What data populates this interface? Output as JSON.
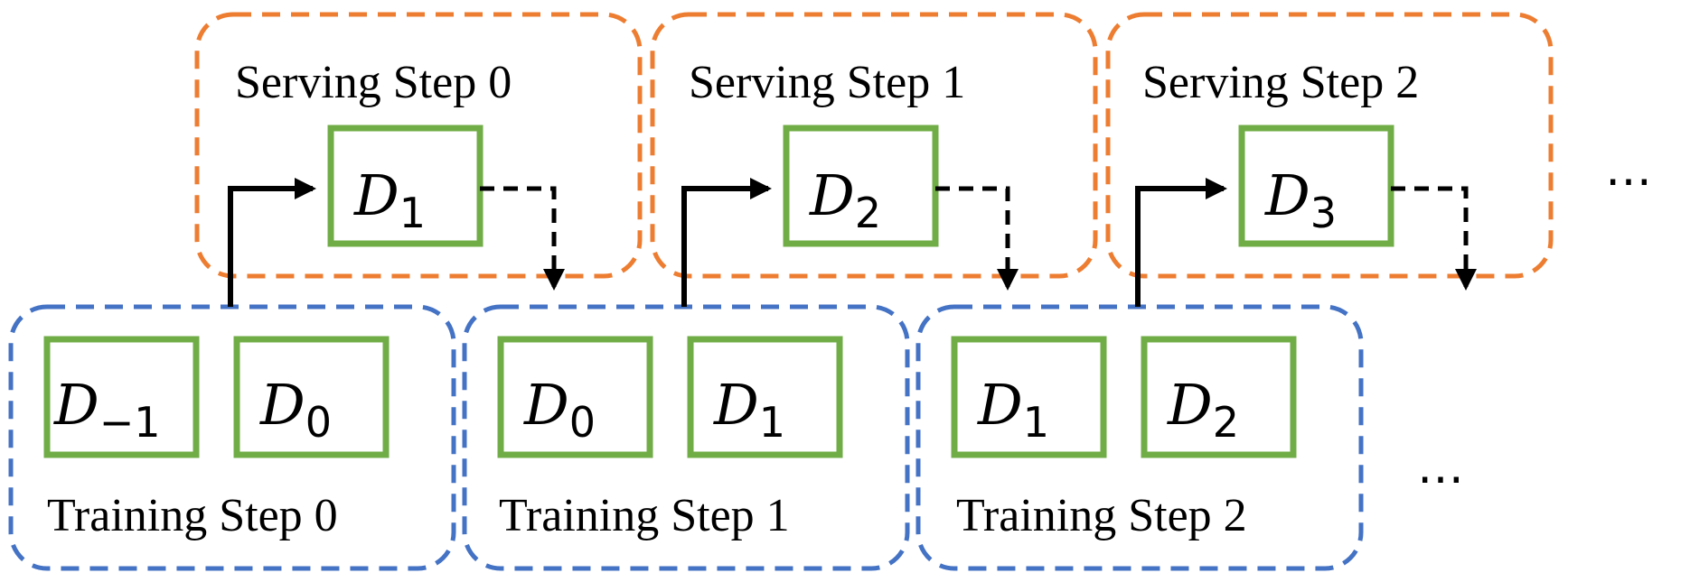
{
  "colors": {
    "serving_border": "#ED7D31",
    "training_border": "#4472C4",
    "data_box_border": "#70AD47",
    "arrow": "#000000"
  },
  "serving_steps": [
    {
      "label": "Serving Step 0",
      "data": {
        "base": "D",
        "sub": "1"
      }
    },
    {
      "label": "Serving Step 1",
      "data": {
        "base": "D",
        "sub": "2"
      }
    },
    {
      "label": "Serving Step 2",
      "data": {
        "base": "D",
        "sub": "3"
      }
    }
  ],
  "training_steps": [
    {
      "label": "Training Step 0",
      "data": [
        {
          "base": "D",
          "sub": "−1"
        },
        {
          "base": "D",
          "sub": "0"
        }
      ]
    },
    {
      "label": "Training Step 1",
      "data": [
        {
          "base": "D",
          "sub": "0"
        },
        {
          "base": "D",
          "sub": "1"
        }
      ]
    },
    {
      "label": "Training Step 2",
      "data": [
        {
          "base": "D",
          "sub": "1"
        },
        {
          "base": "D",
          "sub": "2"
        }
      ]
    }
  ],
  "continuation": {
    "serving": "⋯",
    "training": "⋯"
  }
}
